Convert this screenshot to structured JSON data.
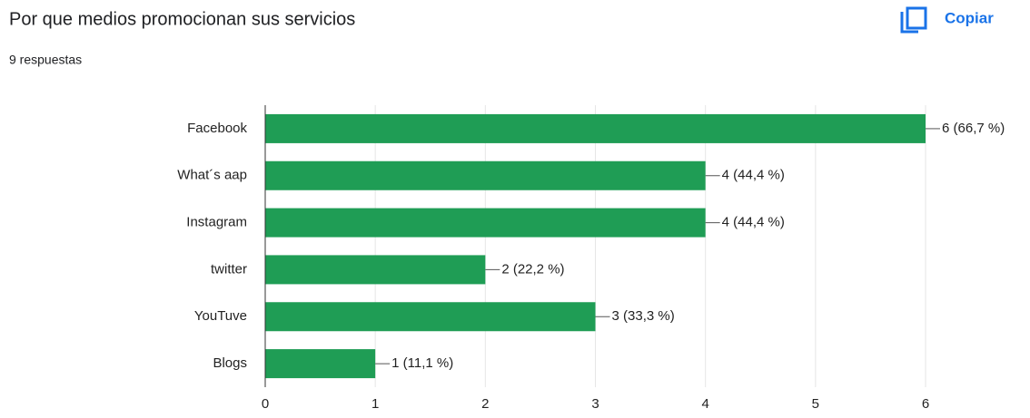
{
  "copy_label": "Copiar",
  "chart_data": {
    "type": "bar",
    "orientation": "horizontal",
    "title": "Por que medios promocionan sus servicios",
    "subtitle": "9 respuestas",
    "categories": [
      "Facebook",
      "What´s aap",
      "Instagram",
      "twitter",
      "YouTuve",
      "Blogs"
    ],
    "values": [
      6,
      4,
      4,
      2,
      3,
      1
    ],
    "value_labels": [
      "6 (66,7 %)",
      "4 (44,4 %)",
      "4 (44,4 %)",
      "2 (22,2 %)",
      "3 (33,3 %)",
      "1 (11,1 %)"
    ],
    "color": "#1f9d55",
    "xlim": [
      0,
      6
    ],
    "xticks": [
      0,
      1,
      2,
      3,
      4,
      5,
      6
    ],
    "grid": true
  }
}
